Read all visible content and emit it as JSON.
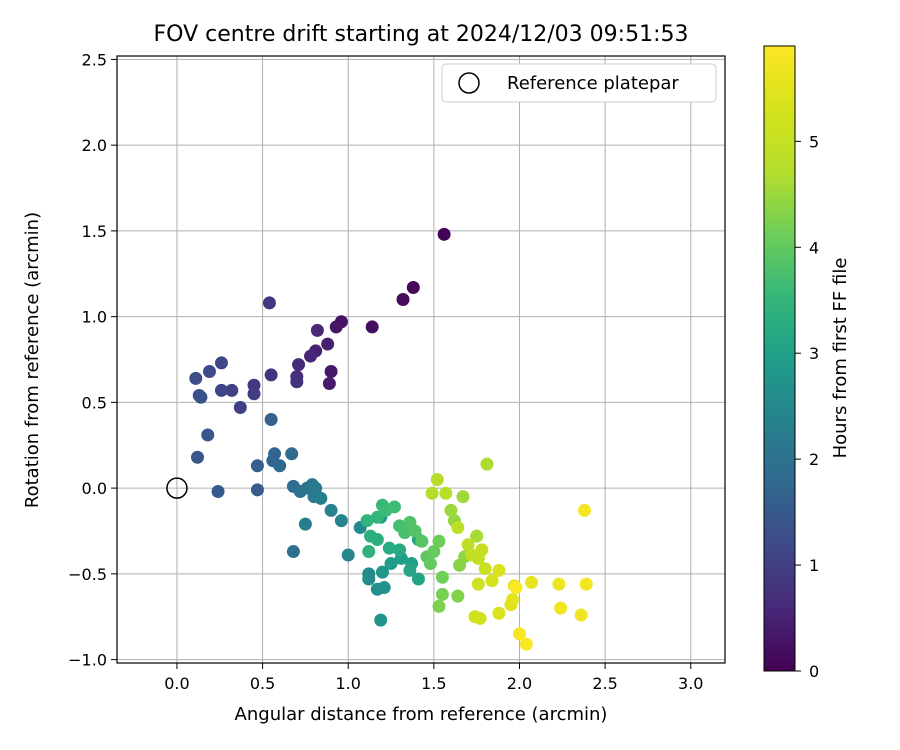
{
  "chart_data": {
    "type": "scatter",
    "title": "FOV centre drift starting at 2024/12/03 09:51:53",
    "xlabel": "Angular distance from reference (arcmin)",
    "ylabel": "Rotation from reference (arcmin)",
    "xlim": [
      -0.35,
      3.2
    ],
    "ylim": [
      -1.02,
      2.52
    ],
    "x_ticks": [
      0.0,
      0.5,
      1.0,
      1.5,
      2.0,
      2.5,
      3.0
    ],
    "x_tick_labels": [
      "0.0",
      "0.5",
      "1.0",
      "1.5",
      "2.0",
      "2.5",
      "3.0"
    ],
    "y_ticks": [
      -1.0,
      -0.5,
      0.0,
      0.5,
      1.0,
      1.5,
      2.0,
      2.5
    ],
    "y_tick_labels": [
      "−1.0",
      "−0.5",
      "0.0",
      "0.5",
      "1.0",
      "1.5",
      "2.0",
      "2.5"
    ],
    "grid": true,
    "legend": {
      "location": "top-right",
      "entries": [
        {
          "label": "Reference platepar",
          "marker": "hollow-circle",
          "x": 0.0,
          "y": 0.0
        }
      ]
    },
    "colorbar": {
      "label": "Hours from first FF file",
      "colormap": "viridis",
      "range": [
        0,
        5.9
      ],
      "ticks": [
        0,
        1,
        2,
        3,
        4,
        5
      ],
      "tick_labels": [
        "0",
        "1",
        "2",
        "3",
        "4",
        "5"
      ]
    },
    "series": [
      {
        "fields": [
          "x",
          "y",
          "hours"
        ],
        "points": [
          [
            1.56,
            1.48,
            0.05
          ],
          [
            1.38,
            1.17,
            0.1
          ],
          [
            1.32,
            1.1,
            0.15
          ],
          [
            1.14,
            0.94,
            0.2
          ],
          [
            0.96,
            0.97,
            0.25
          ],
          [
            0.93,
            0.94,
            0.3
          ],
          [
            0.9,
            0.68,
            0.35
          ],
          [
            0.89,
            0.61,
            0.4
          ],
          [
            0.88,
            0.84,
            0.45
          ],
          [
            0.81,
            0.8,
            0.5
          ],
          [
            0.78,
            0.77,
            0.55
          ],
          [
            0.82,
            0.92,
            0.6
          ],
          [
            0.71,
            0.72,
            0.65
          ],
          [
            0.7,
            0.65,
            0.7
          ],
          [
            0.7,
            0.62,
            0.75
          ],
          [
            0.55,
            0.66,
            0.8
          ],
          [
            0.54,
            1.08,
            0.85
          ],
          [
            0.45,
            0.6,
            0.9
          ],
          [
            0.45,
            0.55,
            0.95
          ],
          [
            0.37,
            0.47,
            1.0
          ],
          [
            0.32,
            0.57,
            1.05
          ],
          [
            0.26,
            0.57,
            1.1
          ],
          [
            0.26,
            0.73,
            1.15
          ],
          [
            0.19,
            0.68,
            1.2
          ],
          [
            0.11,
            0.64,
            1.25
          ],
          [
            0.13,
            0.54,
            1.3
          ],
          [
            0.14,
            0.53,
            1.35
          ],
          [
            0.18,
            0.31,
            1.4
          ],
          [
            0.12,
            0.18,
            1.45
          ],
          [
            0.24,
            -0.02,
            1.5
          ],
          [
            0.47,
            -0.01,
            1.55
          ],
          [
            0.47,
            0.13,
            1.6
          ],
          [
            0.55,
            0.4,
            1.65
          ],
          [
            0.56,
            0.16,
            1.7
          ],
          [
            0.57,
            0.2,
            1.75
          ],
          [
            0.6,
            0.13,
            1.8
          ],
          [
            0.67,
            0.2,
            1.85
          ],
          [
            0.68,
            0.01,
            1.9
          ],
          [
            0.68,
            -0.37,
            1.95
          ],
          [
            0.72,
            -0.02,
            2.0
          ],
          [
            0.76,
            0.0,
            2.05
          ],
          [
            0.79,
            0.02,
            2.1
          ],
          [
            0.8,
            -0.05,
            2.15
          ],
          [
            0.81,
            0.0,
            2.2
          ],
          [
            0.75,
            -0.21,
            2.25
          ],
          [
            0.84,
            -0.06,
            2.3
          ],
          [
            0.9,
            -0.13,
            2.35
          ],
          [
            0.96,
            -0.19,
            2.4
          ],
          [
            1.0,
            -0.39,
            2.45
          ],
          [
            1.07,
            -0.23,
            2.5
          ],
          [
            1.12,
            -0.5,
            2.55
          ],
          [
            1.12,
            -0.53,
            2.6
          ],
          [
            1.17,
            -0.59,
            2.65
          ],
          [
            1.21,
            -0.58,
            2.7
          ],
          [
            1.19,
            -0.77,
            2.75
          ],
          [
            1.2,
            -0.49,
            2.8
          ],
          [
            1.19,
            -0.17,
            2.85
          ],
          [
            1.25,
            -0.44,
            2.9
          ],
          [
            1.31,
            -0.41,
            2.95
          ],
          [
            1.37,
            -0.44,
            3.0
          ],
          [
            1.41,
            -0.3,
            3.05
          ],
          [
            1.41,
            -0.53,
            3.1
          ],
          [
            1.36,
            -0.48,
            3.15
          ],
          [
            1.3,
            -0.36,
            3.2
          ],
          [
            1.24,
            -0.35,
            3.25
          ],
          [
            1.17,
            -0.3,
            3.3
          ],
          [
            1.13,
            -0.28,
            3.35
          ],
          [
            1.12,
            -0.37,
            3.4
          ],
          [
            1.11,
            -0.19,
            3.45
          ],
          [
            1.17,
            -0.17,
            3.5
          ],
          [
            1.2,
            -0.1,
            3.55
          ],
          [
            1.22,
            -0.13,
            3.6
          ],
          [
            1.27,
            -0.11,
            3.65
          ],
          [
            1.3,
            -0.22,
            3.7
          ],
          [
            1.33,
            -0.26,
            3.75
          ],
          [
            1.36,
            -0.2,
            3.8
          ],
          [
            1.39,
            -0.25,
            3.85
          ],
          [
            1.43,
            -0.31,
            3.9
          ],
          [
            1.46,
            -0.4,
            3.95
          ],
          [
            1.48,
            -0.44,
            4.0
          ],
          [
            1.5,
            -0.37,
            4.05
          ],
          [
            1.53,
            -0.31,
            4.1
          ],
          [
            1.55,
            -0.52,
            4.15
          ],
          [
            1.55,
            -0.62,
            4.2
          ],
          [
            1.53,
            -0.69,
            4.25
          ],
          [
            1.64,
            -0.63,
            4.3
          ],
          [
            1.65,
            -0.45,
            4.35
          ],
          [
            1.68,
            -0.4,
            4.4
          ],
          [
            1.62,
            -0.19,
            4.45
          ],
          [
            1.6,
            -0.13,
            4.5
          ],
          [
            1.67,
            -0.05,
            4.55
          ],
          [
            1.75,
            -0.28,
            4.6
          ],
          [
            1.81,
            0.14,
            4.65
          ],
          [
            1.49,
            -0.03,
            4.7
          ],
          [
            1.52,
            0.05,
            4.75
          ],
          [
            1.57,
            -0.03,
            4.8
          ],
          [
            1.64,
            -0.23,
            4.85
          ],
          [
            1.7,
            -0.33,
            4.9
          ],
          [
            1.72,
            -0.39,
            4.95
          ],
          [
            1.76,
            -0.41,
            5.0
          ],
          [
            1.78,
            -0.36,
            5.05
          ],
          [
            1.8,
            -0.47,
            5.1
          ],
          [
            1.76,
            -0.56,
            5.15
          ],
          [
            1.74,
            -0.75,
            5.2
          ],
          [
            1.77,
            -0.76,
            5.25
          ],
          [
            1.84,
            -0.54,
            5.3
          ],
          [
            1.88,
            -0.48,
            5.35
          ],
          [
            1.88,
            -0.73,
            5.4
          ],
          [
            1.95,
            -0.68,
            5.45
          ],
          [
            1.96,
            -0.65,
            5.5
          ],
          [
            1.97,
            -0.57,
            5.55
          ],
          [
            2.07,
            -0.55,
            5.6
          ],
          [
            2.23,
            -0.56,
            5.65
          ],
          [
            2.24,
            -0.7,
            5.7
          ],
          [
            2.36,
            -0.74,
            5.72
          ],
          [
            2.39,
            -0.56,
            5.75
          ],
          [
            2.38,
            -0.13,
            5.78
          ],
          [
            2.0,
            -0.85,
            5.82
          ],
          [
            2.04,
            -0.91,
            5.86
          ],
          [
            1.98,
            -0.58,
            5.88
          ]
        ]
      }
    ]
  }
}
